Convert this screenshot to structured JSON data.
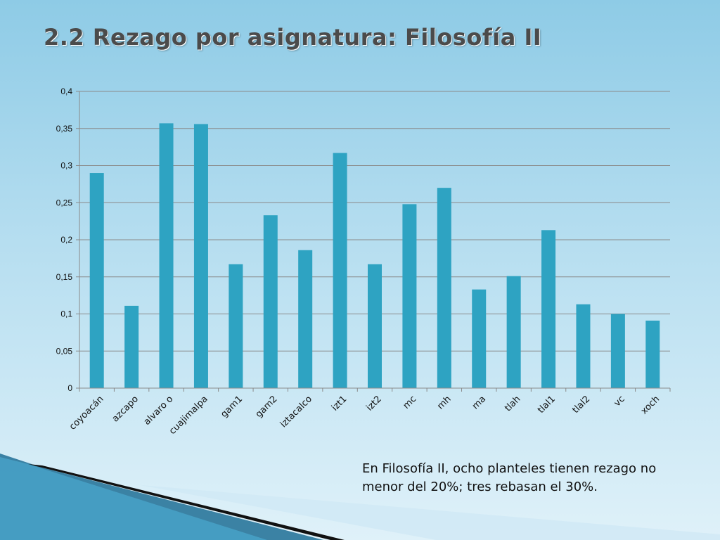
{
  "slide": {
    "title": "2.2 Rezago por asignatura: Filosofía II",
    "caption": "En Filosofía II, ocho planteles tienen rezago no menor del 20%; tres rebasan el 30%."
  },
  "chart_data": {
    "type": "bar",
    "title": "",
    "xlabel": "",
    "ylabel": "",
    "categories": [
      "coyoacán",
      "azcapo",
      "alvaro o",
      "cuajimalpa",
      "gam1",
      "gam2",
      "iztacalco",
      "izt1",
      "izt2",
      "mc",
      "mh",
      "ma",
      "tlah",
      "tlal1",
      "tlal2",
      "vc",
      "xoch"
    ],
    "values": [
      0.29,
      0.111,
      0.357,
      0.356,
      0.167,
      0.233,
      0.186,
      0.317,
      0.167,
      0.248,
      0.27,
      0.133,
      0.151,
      0.213,
      0.113,
      0.1,
      0.091
    ],
    "ylim": [
      0,
      0.4
    ],
    "yticks": [
      0,
      0.05,
      0.1,
      0.15,
      0.2,
      0.25,
      0.3,
      0.35,
      0.4
    ],
    "ytick_labels": [
      "0",
      "0,05",
      "0,1",
      "0,15",
      "0,2",
      "0,25",
      "0,3",
      "0,35",
      "0,4"
    ],
    "grid": true,
    "legend": "none",
    "bar_color": "#2ea3c2"
  }
}
